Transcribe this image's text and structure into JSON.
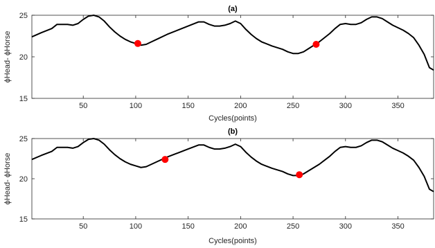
{
  "chart_data": [
    {
      "type": "line",
      "title": "(a)",
      "xlabel": "Cycles(points)",
      "ylabel": "ϕHead- ϕHorse",
      "xlim": [
        1,
        384
      ],
      "ylim": [
        15,
        25
      ],
      "xticks": [
        50,
        100,
        150,
        200,
        250,
        300,
        350
      ],
      "yticks": [
        15,
        20,
        25
      ],
      "grid": false,
      "line_color": "#000000",
      "marker_color": "#ff0000",
      "series": [
        {
          "x": [
            1,
            10,
            20,
            25,
            30,
            35,
            40,
            45,
            50,
            55,
            60,
            65,
            70,
            75,
            80,
            85,
            90,
            95,
            100,
            105,
            110,
            115,
            120,
            130,
            140,
            150,
            160,
            165,
            170,
            175,
            180,
            185,
            190,
            195,
            200,
            205,
            210,
            215,
            220,
            230,
            240,
            245,
            250,
            255,
            260,
            265,
            270,
            275,
            280,
            285,
            290,
            295,
            300,
            305,
            310,
            315,
            320,
            325,
            330,
            335,
            340,
            345,
            350,
            355,
            360,
            365,
            370,
            375,
            380,
            384
          ],
          "y": [
            22.4,
            22.9,
            23.4,
            23.9,
            23.9,
            23.9,
            23.8,
            24.0,
            24.5,
            24.9,
            25.0,
            24.8,
            24.3,
            23.6,
            23.0,
            22.5,
            22.1,
            21.8,
            21.6,
            21.4,
            21.5,
            21.8,
            22.1,
            22.7,
            23.2,
            23.7,
            24.2,
            24.2,
            23.9,
            23.7,
            23.7,
            23.8,
            24.0,
            24.3,
            24.0,
            23.3,
            22.7,
            22.2,
            21.8,
            21.3,
            20.9,
            20.6,
            20.4,
            20.4,
            20.6,
            21.0,
            21.4,
            21.8,
            22.3,
            22.8,
            23.4,
            23.9,
            24.0,
            23.9,
            23.9,
            24.1,
            24.5,
            24.8,
            24.8,
            24.6,
            24.2,
            23.8,
            23.5,
            23.2,
            22.8,
            22.3,
            21.4,
            20.3,
            18.7,
            18.4
          ]
        }
      ],
      "markers": [
        {
          "x": 102,
          "y": 21.6
        },
        {
          "x": 272,
          "y": 21.5
        }
      ]
    },
    {
      "type": "line",
      "title": "(b)",
      "xlabel": "Cycles(points)",
      "ylabel": "ϕHead- ϕHorse",
      "xlim": [
        1,
        384
      ],
      "ylim": [
        15,
        25
      ],
      "xticks": [
        50,
        100,
        150,
        200,
        250,
        300,
        350
      ],
      "yticks": [
        15,
        20,
        25
      ],
      "grid": false,
      "line_color": "#000000",
      "marker_color": "#ff0000",
      "series": [
        {
          "x": [
            1,
            10,
            20,
            25,
            30,
            35,
            40,
            45,
            50,
            55,
            60,
            65,
            70,
            75,
            80,
            85,
            90,
            95,
            100,
            105,
            110,
            115,
            120,
            130,
            140,
            150,
            160,
            165,
            170,
            175,
            180,
            185,
            190,
            195,
            200,
            205,
            210,
            215,
            220,
            230,
            240,
            245,
            250,
            255,
            260,
            265,
            270,
            275,
            280,
            285,
            290,
            295,
            300,
            305,
            310,
            315,
            320,
            325,
            330,
            335,
            340,
            345,
            350,
            355,
            360,
            365,
            370,
            375,
            380,
            384
          ],
          "y": [
            22.4,
            22.9,
            23.4,
            23.9,
            23.9,
            23.9,
            23.8,
            24.0,
            24.5,
            24.9,
            25.0,
            24.8,
            24.3,
            23.6,
            23.0,
            22.5,
            22.1,
            21.8,
            21.6,
            21.4,
            21.5,
            21.8,
            22.1,
            22.7,
            23.2,
            23.7,
            24.2,
            24.2,
            23.9,
            23.7,
            23.7,
            23.8,
            24.0,
            24.3,
            24.0,
            23.3,
            22.7,
            22.2,
            21.8,
            21.3,
            20.9,
            20.6,
            20.4,
            20.4,
            20.6,
            21.0,
            21.4,
            21.8,
            22.3,
            22.8,
            23.4,
            23.9,
            24.0,
            23.9,
            23.9,
            24.1,
            24.5,
            24.8,
            24.8,
            24.6,
            24.2,
            23.8,
            23.5,
            23.2,
            22.8,
            22.3,
            21.4,
            20.3,
            18.7,
            18.4
          ]
        }
      ],
      "markers": [
        {
          "x": 128,
          "y": 22.4
        },
        {
          "x": 256,
          "y": 20.5
        }
      ]
    }
  ]
}
